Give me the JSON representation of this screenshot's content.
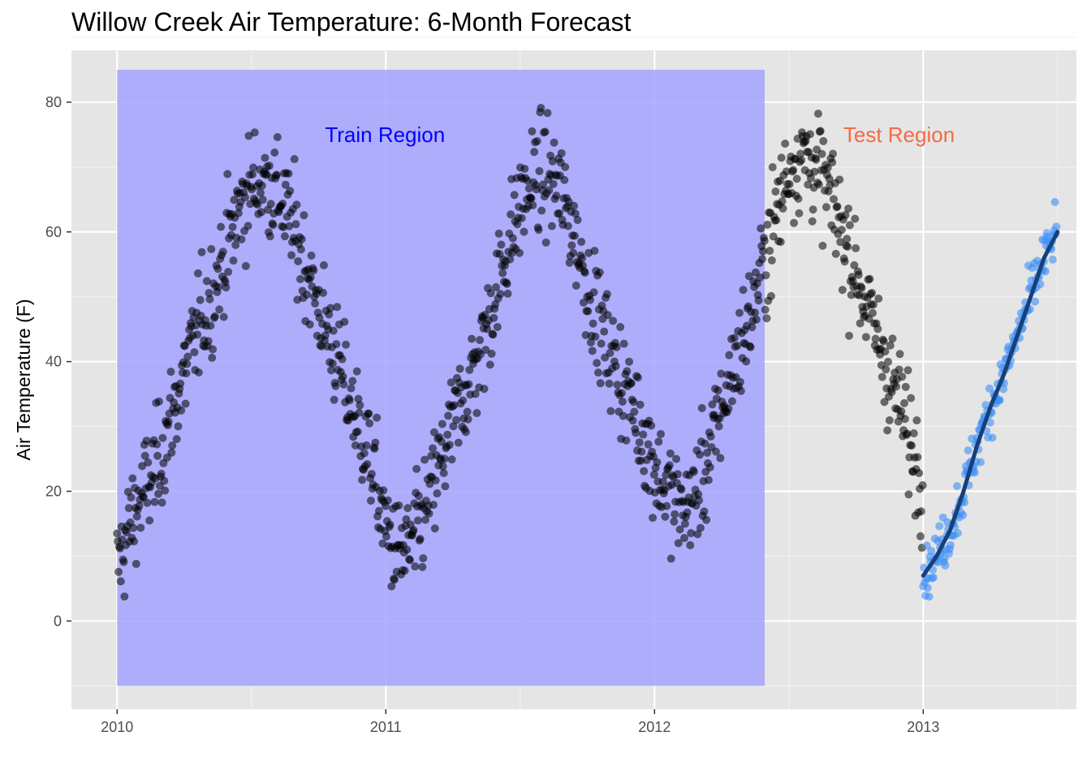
{
  "chart_data": {
    "type": "scatter",
    "title": "Willow Creek Air Temperature: 6-Month Forecast",
    "xlabel": "",
    "ylabel": "Air Temperature (F)",
    "x_ticks": [
      "2010",
      "2011",
      "2012",
      "2013"
    ],
    "y_ticks": [
      "0",
      "20",
      "40",
      "60",
      "80"
    ],
    "xlim": [
      2009.83,
      2013.57
    ],
    "ylim": [
      -13.6,
      88
    ],
    "grid": true,
    "colors": {
      "panel": "#e5e5e5",
      "grid": "#ffffff",
      "train_fill": "#a0a0ff",
      "observed_point": "#000000",
      "forecast_point": "#3d8ff7",
      "forecast_line": "#17407a",
      "train_label": "#0000ff",
      "test_label": "#f46a45"
    },
    "regions": [
      {
        "label": "Train Region",
        "x_start": 2010.0,
        "x_end": 2012.41,
        "y_start": -10,
        "y_end": 85,
        "label_x": 2011.0,
        "label_y": 75
      },
      {
        "label": "Test Region",
        "label_x": 2012.91,
        "label_y": 75
      }
    ],
    "annotations": [
      {
        "text": "Train Region",
        "x": 2011.0,
        "y": 75,
        "color": "#0000ff"
      },
      {
        "text": "Test Region",
        "x": 2012.91,
        "y": 75,
        "color": "#f46a45"
      }
    ],
    "observed_temperature": {
      "description_note": "daily observations approx 2010-01 to 2012-12, sampled as seasonal curve points",
      "x": [
        2010.0,
        2010.05,
        2010.1,
        2010.15,
        2010.2,
        2010.25,
        2010.3,
        2010.35,
        2010.4,
        2010.45,
        2010.5,
        2010.55,
        2010.6,
        2010.65,
        2010.7,
        2010.75,
        2010.8,
        2010.85,
        2010.9,
        2010.95,
        2011.0,
        2011.05,
        2011.1,
        2011.15,
        2011.2,
        2011.25,
        2011.3,
        2011.35,
        2011.4,
        2011.45,
        2011.5,
        2011.55,
        2011.6,
        2011.65,
        2011.7,
        2011.75,
        2011.8,
        2011.85,
        2011.9,
        2011.95,
        2012.0,
        2012.05,
        2012.1,
        2012.15,
        2012.2,
        2012.25,
        2012.3,
        2012.35,
        2012.4,
        2012.45,
        2012.5,
        2012.55,
        2012.6,
        2012.65,
        2012.7,
        2012.75,
        2012.8,
        2012.85,
        2012.9,
        2012.95,
        2013.0
      ],
      "y": [
        8,
        15,
        20,
        24,
        31,
        38,
        45,
        50,
        56,
        63,
        67,
        68,
        66,
        61,
        55,
        48,
        43,
        36,
        30,
        24,
        14,
        10,
        12,
        17,
        24,
        30,
        36,
        41,
        49,
        57,
        64,
        68,
        69,
        66,
        60,
        52,
        45,
        40,
        35,
        30,
        24,
        20,
        17,
        19,
        25,
        33,
        40,
        46,
        54,
        62,
        70,
        72,
        70,
        66,
        60,
        54,
        47,
        41,
        35,
        28,
        22
      ]
    },
    "forecast": {
      "x": [
        2013.0,
        2013.05,
        2013.1,
        2013.15,
        2013.2,
        2013.25,
        2013.3,
        2013.35,
        2013.4,
        2013.45,
        2013.5
      ],
      "y": [
        7,
        10,
        14,
        20,
        27,
        33,
        38,
        44,
        50,
        56,
        60
      ]
    },
    "forecast_points_y_range": [
      -5,
      62
    ]
  }
}
